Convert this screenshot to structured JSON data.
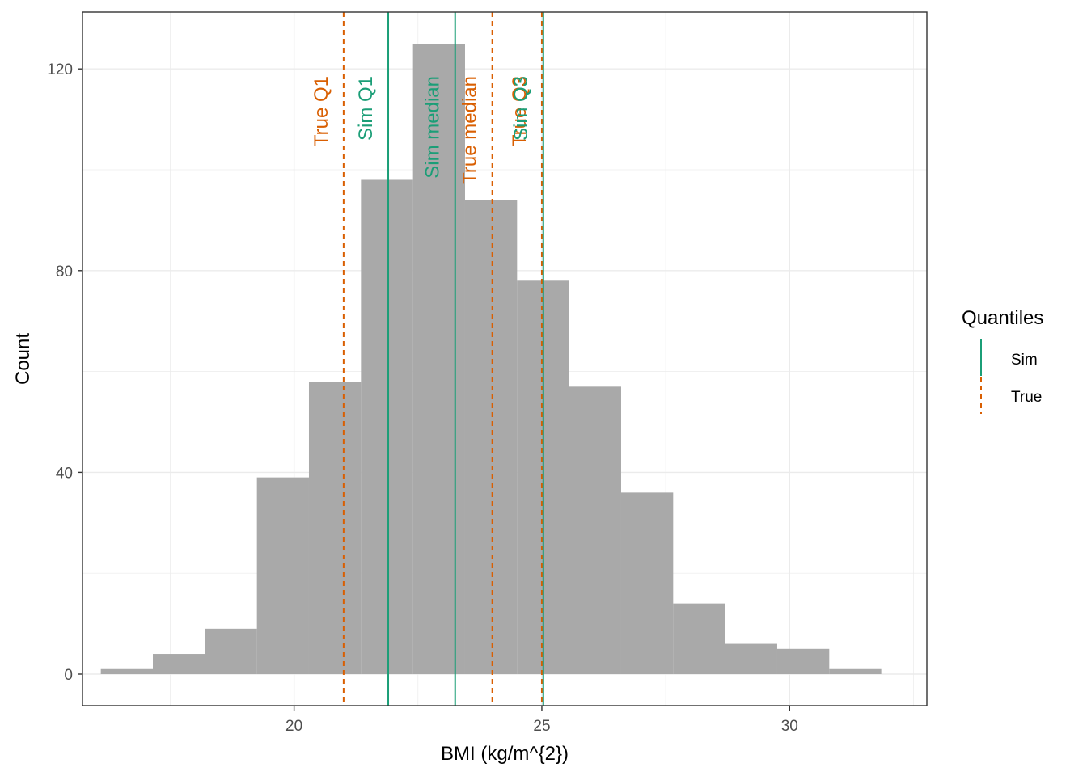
{
  "chart_data": {
    "type": "bar",
    "title": "",
    "xlabel": "BMI (kg/m^{2})",
    "ylabel": "Count",
    "xlim": [
      15.73,
      32.77
    ],
    "ylim": [
      -6.25,
      131.25
    ],
    "x_ticks": [
      20,
      25,
      30
    ],
    "y_ticks": [
      0,
      40,
      80,
      120
    ],
    "grid": true,
    "bar_color": "#a9a9a9",
    "bins": [
      {
        "start": 16.1,
        "end": 17.15,
        "count": 1
      },
      {
        "start": 17.15,
        "end": 18.2,
        "count": 4
      },
      {
        "start": 18.2,
        "end": 19.25,
        "count": 9
      },
      {
        "start": 19.25,
        "end": 20.3,
        "count": 39
      },
      {
        "start": 20.3,
        "end": 21.35,
        "count": 58
      },
      {
        "start": 21.35,
        "end": 22.4,
        "count": 98
      },
      {
        "start": 22.4,
        "end": 23.45,
        "count": 125
      },
      {
        "start": 23.45,
        "end": 24.5,
        "count": 94
      },
      {
        "start": 24.5,
        "end": 25.55,
        "count": 78
      },
      {
        "start": 25.55,
        "end": 26.6,
        "count": 57
      },
      {
        "start": 26.6,
        "end": 27.65,
        "count": 36
      },
      {
        "start": 27.65,
        "end": 28.7,
        "count": 14
      },
      {
        "start": 28.7,
        "end": 29.75,
        "count": 6
      },
      {
        "start": 29.75,
        "end": 30.8,
        "count": 5
      },
      {
        "start": 30.8,
        "end": 31.85,
        "count": 1
      }
    ],
    "vlines": [
      {
        "label": "True Q1",
        "x": 21.0,
        "group": "True"
      },
      {
        "label": "Sim Q1",
        "x": 21.9,
        "group": "Sim"
      },
      {
        "label": "Sim median",
        "x": 23.25,
        "group": "Sim"
      },
      {
        "label": "True median",
        "x": 24.0,
        "group": "True"
      },
      {
        "label": "True Q3",
        "x": 25.0,
        "group": "True"
      },
      {
        "label": "Sim Q3",
        "x": 25.03,
        "group": "Sim"
      }
    ],
    "legend": {
      "title": "Quantiles",
      "placement": "right",
      "items": [
        {
          "name": "Sim",
          "color": "#1b9e77",
          "linetype": "solid"
        },
        {
          "name": "True",
          "color": "#d95f02",
          "linetype": "dashed"
        }
      ]
    }
  }
}
